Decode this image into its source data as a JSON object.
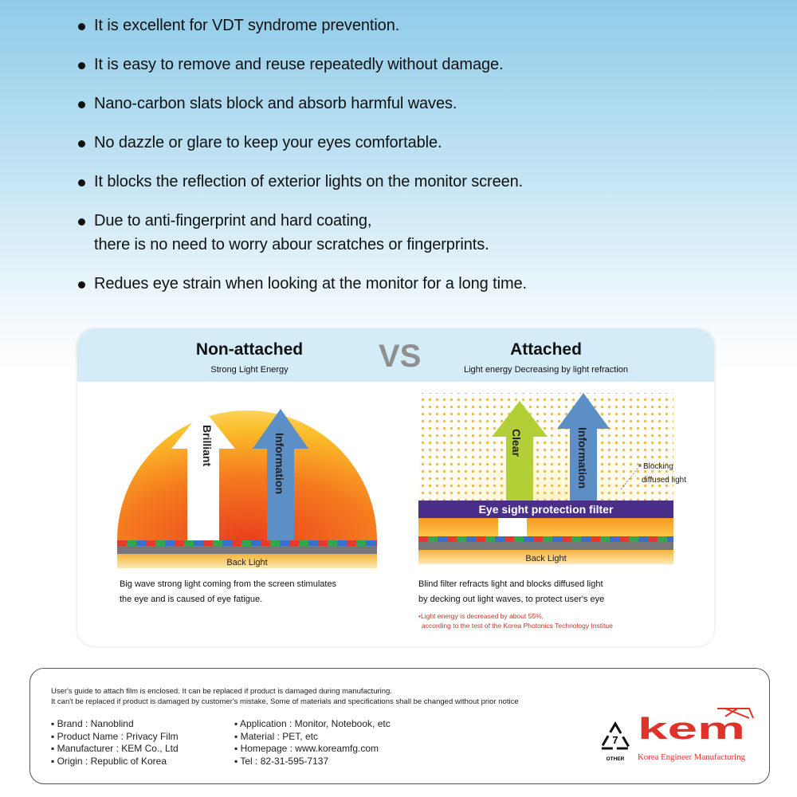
{
  "bullets": [
    [
      "It is excellent for VDT syndrome prevention."
    ],
    [
      "It is easy to remove and reuse repeatedly without damage."
    ],
    [
      "Nano-carbon slats block and absorb harmful waves."
    ],
    [
      "No dazzle or glare to keep your eyes comfortable."
    ],
    [
      "It blocks the reflection of exterior lights on the monitor screen."
    ],
    [
      "Due to anti-fingerprint and hard coating,",
      "there is no need to worry abour scratches or fingerprints."
    ],
    [
      "Redues eye strain when looking at the monitor for a long time."
    ]
  ],
  "comparison": {
    "vs": "VS",
    "left": {
      "title": "Non-attached",
      "subtitle": "Strong Light Energy",
      "arrow1": "Brilliant",
      "arrow2": "Information",
      "backlight": "Back Light",
      "caption": [
        "Big wave strong light coming from the screen stimulates",
        "the eye and is caused of eye fatigue."
      ]
    },
    "right": {
      "title": "Attached",
      "subtitle": "Light energy Decreasing by light refraction",
      "arrow1": "Clear",
      "arrow2": "Information",
      "filter": "Eye sight protection filter",
      "blocking": [
        "Blocking",
        "diffused light"
      ],
      "backlight": "Back Light",
      "caption": [
        "Blind filter refracts light and blocks diffused light",
        "by decking out light waves, to protect user's eye"
      ],
      "note": [
        "•Light energy is decreased by about 55%,",
        "according to the test of the Korea Photonics Technology Institue"
      ]
    }
  },
  "info": {
    "guide": [
      "User's guide to attach film is enclosed. It can be replaced if product is damaged during manufacturing.",
      "It can't be replaced if product is damaged by customer's mistake, Some of materials and specifications shall be changed without prior notice"
    ],
    "left": [
      "Brand : Nanoblind",
      "Product Name : Privacy Film",
      "Manufacturer : KEM Co., Ltd",
      "Origin : Republic of Korea"
    ],
    "right": [
      "Application : Monitor, Notebook, etc",
      "Material : PET, etc",
      "Homepage : www.koreamfg.com",
      "Tel : 82-31-595-7137"
    ],
    "recycle_number": "7",
    "recycle_label": "OTHER",
    "logo_text": "kem",
    "logo_tagline": "Korea Engineer Manufacturing",
    "brand_color": "#e0322b"
  }
}
